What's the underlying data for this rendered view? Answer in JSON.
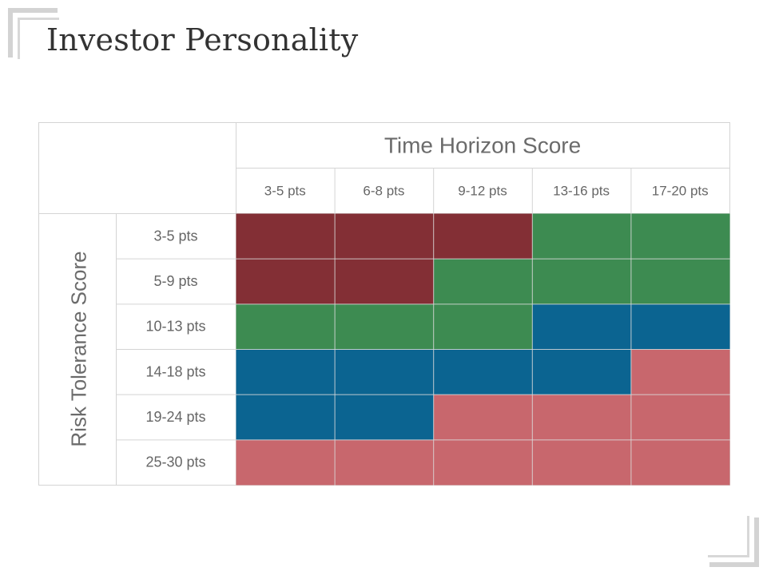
{
  "page": {
    "title": "Investor Personality"
  },
  "chart_data": {
    "type": "heatmap",
    "x_axis_title": "Time Horizon Score",
    "y_axis_title": "Risk Tolerance Score",
    "columns": [
      "3-5 pts",
      "6-8 pts",
      "9-12 pts",
      "13-16 pts",
      "17-20 pts"
    ],
    "rows": [
      "3-5 pts",
      "5-9 pts",
      "10-13 pts",
      "14-18 pts",
      "19-24 pts",
      "25-30 pts"
    ],
    "cells": [
      [
        0,
        0,
        0,
        1,
        1
      ],
      [
        0,
        0,
        1,
        1,
        1
      ],
      [
        1,
        1,
        1,
        2,
        2
      ],
      [
        2,
        2,
        2,
        2,
        3
      ],
      [
        2,
        2,
        3,
        3,
        3
      ],
      [
        3,
        3,
        3,
        3,
        3
      ]
    ],
    "category_colors": [
      "#832f35",
      "#3d8b51",
      "#0b6491",
      "#c8676d"
    ]
  }
}
